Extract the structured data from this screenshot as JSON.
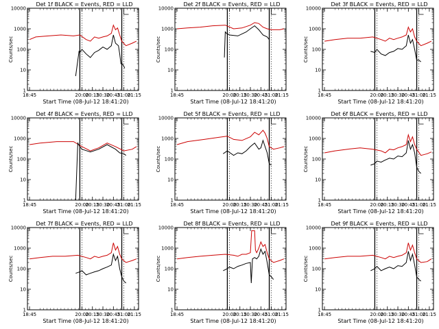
{
  "chart_data": [
    {
      "type": "line",
      "title": "Det 1f BLACK = Events, RED = LLD",
      "xlabel": "Start Time (08-Jul-12 18:41:20)",
      "ylabel": "Counts/sec",
      "xlim": [
        18.7,
        21.35
      ],
      "ylim": [
        1,
        10000
      ],
      "yscale": "log",
      "xticks": [
        "18:45",
        "20:00",
        "20:15",
        "20:30",
        "20:45",
        "21:00",
        "21:15"
      ],
      "yticks": [
        "1",
        "10",
        "100",
        "1000",
        "10000"
      ],
      "markers": [
        19.95,
        20.95
      ],
      "series": [
        {
          "name": "Events",
          "color": "#000000",
          "x": [
            19.85,
            19.93,
            19.95,
            20.0,
            20.1,
            20.2,
            20.3,
            20.4,
            20.5,
            20.6,
            20.7,
            20.75,
            20.8,
            20.87,
            20.9,
            20.93,
            20.96,
            21.0,
            21.02
          ],
          "y": [
            5,
            80,
            70,
            100,
            60,
            40,
            70,
            90,
            130,
            100,
            150,
            500,
            200,
            150,
            60,
            20,
            20,
            15,
            12
          ]
        },
        {
          "name": "LLD",
          "color": "#cc0000",
          "x": [
            18.75,
            18.9,
            19.2,
            19.5,
            19.8,
            19.95,
            20.1,
            20.2,
            20.3,
            20.4,
            20.5,
            20.6,
            20.7,
            20.75,
            20.8,
            20.85,
            20.9,
            20.95,
            21.05,
            21.2,
            21.3
          ],
          "y": [
            300,
            400,
            450,
            500,
            450,
            500,
            300,
            250,
            400,
            350,
            400,
            450,
            600,
            1500,
            900,
            1100,
            500,
            250,
            150,
            200,
            250
          ]
        }
      ]
    },
    {
      "type": "line",
      "title": "Det 2f BLACK = Events, RED = LLD",
      "xlabel": "Start Time (08-Jul-12 18:41:20)",
      "ylabel": "Counts/sec",
      "xlim": [
        18.7,
        21.35
      ],
      "ylim": [
        1,
        10000
      ],
      "yscale": "log",
      "xticks": [
        "18:45",
        "20:00",
        "20:15",
        "20:30",
        "20:45",
        "21:00",
        "21:15"
      ],
      "yticks": [
        "1",
        "10",
        "100",
        "1000",
        "10000"
      ],
      "markers": [
        19.95,
        20.95
      ],
      "series": [
        {
          "name": "Events",
          "color": "#000000",
          "x": [
            19.88,
            19.9,
            19.93,
            20.0,
            20.2,
            20.4,
            20.5,
            20.6,
            20.7,
            20.8,
            20.9,
            20.95
          ],
          "y": [
            40,
            700,
            600,
            500,
            450,
            700,
            1000,
            1400,
            900,
            500,
            400,
            300
          ]
        },
        {
          "name": "LLD",
          "color": "#cc0000",
          "x": [
            18.75,
            19.0,
            19.3,
            19.6,
            19.9,
            20.1,
            20.3,
            20.5,
            20.6,
            20.7,
            20.8,
            20.9,
            21.0,
            21.2,
            21.3
          ],
          "y": [
            1000,
            1100,
            1200,
            1400,
            1500,
            1000,
            1100,
            1500,
            2000,
            1800,
            1200,
            1000,
            900,
            900,
            1000
          ]
        }
      ]
    },
    {
      "type": "line",
      "title": "Det 3f BLACK = Events, RED = LLD",
      "xlabel": "Start Time (08-Jul-12 18:41:20)",
      "ylabel": "Counts/sec",
      "xlim": [
        18.7,
        21.35
      ],
      "ylim": [
        1,
        10000
      ],
      "yscale": "log",
      "xticks": [
        "18:45",
        "20:00",
        "20:15",
        "20:30",
        "20:45",
        "21:00",
        "21:15"
      ],
      "yticks": [
        "1",
        "10",
        "100",
        "1000",
        "10000"
      ],
      "markers": [
        19.95,
        20.95
      ],
      "series": [
        {
          "name": "Events",
          "color": "#000000",
          "x": [
            19.85,
            19.95,
            20.0,
            20.1,
            20.2,
            20.3,
            20.4,
            20.5,
            20.6,
            20.7,
            20.75,
            20.8,
            20.85,
            20.9,
            20.95,
            21.0,
            21.05
          ],
          "y": [
            80,
            70,
            100,
            60,
            50,
            70,
            80,
            110,
            100,
            150,
            500,
            200,
            300,
            100,
            30,
            30,
            25
          ]
        },
        {
          "name": "LLD",
          "color": "#cc0000",
          "x": [
            18.75,
            19.0,
            19.3,
            19.6,
            19.9,
            20.1,
            20.2,
            20.3,
            20.4,
            20.5,
            20.6,
            20.7,
            20.75,
            20.8,
            20.85,
            20.9,
            20.95,
            21.05,
            21.2,
            21.3
          ],
          "y": [
            250,
            300,
            350,
            350,
            400,
            300,
            250,
            350,
            300,
            350,
            400,
            500,
            1200,
            700,
            1000,
            400,
            250,
            150,
            200,
            250
          ]
        }
      ]
    },
    {
      "type": "line",
      "title": "Det 4f BLACK = Events, RED = LLD",
      "xlabel": "Start Time (08-Jul-12 18:41:20)",
      "ylabel": "Counts/sec",
      "xlim": [
        18.7,
        21.35
      ],
      "ylim": [
        1,
        10000
      ],
      "yscale": "log",
      "xticks": [
        "18:45",
        "20:00",
        "20:15",
        "20:30",
        "20:45",
        "21:00",
        "21:15"
      ],
      "yticks": [
        "1",
        "10",
        "100",
        "1000",
        "10000"
      ],
      "markers": [
        19.95,
        20.95
      ],
      "series": [
        {
          "name": "Events",
          "color": "#000000",
          "x": [
            19.85,
            19.9,
            19.95,
            20.0,
            20.2,
            20.4,
            20.6,
            20.8,
            20.9,
            21.0,
            21.05
          ],
          "y": [
            1,
            600,
            400,
            300,
            220,
            300,
            500,
            300,
            200,
            180,
            150
          ]
        },
        {
          "name": "LLD",
          "color": "#cc0000",
          "x": [
            18.75,
            19.0,
            19.4,
            19.8,
            20.0,
            20.2,
            20.4,
            20.6,
            20.8,
            21.0,
            21.2,
            21.3
          ],
          "y": [
            500,
            600,
            700,
            700,
            400,
            250,
            350,
            600,
            400,
            250,
            300,
            400
          ]
        }
      ]
    },
    {
      "type": "line",
      "title": "Det 5f BLACK = Events, RED = LLD",
      "xlabel": "Start Time (08-Jul-12 18:41:20)",
      "ylabel": "Counts/sec",
      "xlim": [
        18.7,
        21.35
      ],
      "ylim": [
        1,
        10000
      ],
      "yscale": "log",
      "xticks": [
        "18:45",
        "20:00",
        "20:15",
        "20:30",
        "20:45",
        "21:00",
        "21:15"
      ],
      "yticks": [
        "1",
        "10",
        "100",
        "1000",
        "10000"
      ],
      "markers": [
        19.95,
        20.95
      ],
      "series": [
        {
          "name": "Events",
          "color": "#000000",
          "x": [
            19.85,
            19.95,
            20.1,
            20.2,
            20.3,
            20.4,
            20.5,
            20.6,
            20.7,
            20.75,
            20.8,
            20.85,
            20.9,
            20.95,
            21.0
          ],
          "y": [
            180,
            250,
            150,
            200,
            180,
            250,
            400,
            600,
            300,
            350,
            800,
            400,
            200,
            60,
            50
          ]
        },
        {
          "name": "LLD",
          "color": "#cc0000",
          "x": [
            18.75,
            19.0,
            19.4,
            19.7,
            19.95,
            20.1,
            20.3,
            20.5,
            20.6,
            20.7,
            20.8,
            20.85,
            20.9,
            20.95,
            21.05,
            21.2,
            21.3
          ],
          "y": [
            500,
            700,
            900,
            1100,
            1300,
            900,
            800,
            1200,
            2000,
            1500,
            2500,
            1800,
            1000,
            400,
            300,
            350,
            400
          ]
        }
      ]
    },
    {
      "type": "line",
      "title": "Det 6f BLACK = Events, RED = LLD",
      "xlabel": "Start Time (08-Jul-12 18:41:20)",
      "ylabel": "Counts/sec",
      "xlim": [
        18.7,
        21.35
      ],
      "ylim": [
        1,
        10000
      ],
      "yscale": "log",
      "xticks": [
        "18:45",
        "20:00",
        "20:15",
        "20:30",
        "20:45",
        "21:00",
        "21:15"
      ],
      "yticks": [
        "1",
        "10",
        "100",
        "1000",
        "10000"
      ],
      "markers": [
        19.95,
        20.95
      ],
      "series": [
        {
          "name": "Events",
          "color": "#000000",
          "x": [
            19.85,
            19.95,
            20.0,
            20.1,
            20.2,
            20.3,
            20.4,
            20.5,
            20.6,
            20.7,
            20.75,
            20.8,
            20.85,
            20.9,
            20.95,
            21.0,
            21.05
          ],
          "y": [
            50,
            60,
            80,
            70,
            90,
            110,
            100,
            140,
            130,
            200,
            800,
            300,
            500,
            200,
            40,
            25,
            20
          ]
        },
        {
          "name": "LLD",
          "color": "#cc0000",
          "x": [
            18.75,
            19.0,
            19.3,
            19.6,
            19.9,
            20.1,
            20.2,
            20.3,
            20.4,
            20.5,
            20.6,
            20.7,
            20.75,
            20.8,
            20.85,
            20.9,
            20.95,
            21.05,
            21.2,
            21.3
          ],
          "y": [
            200,
            250,
            300,
            350,
            300,
            250,
            200,
            300,
            280,
            350,
            400,
            500,
            1500,
            700,
            1200,
            500,
            300,
            150,
            180,
            220
          ]
        }
      ]
    },
    {
      "type": "line",
      "title": "Det 7f BLACK = Events, RED = LLD",
      "xlabel": "Start Time (08-Jul-12 18:41:20)",
      "ylabel": "Counts/sec",
      "xlim": [
        18.7,
        21.35
      ],
      "ylim": [
        1,
        10000
      ],
      "yscale": "log",
      "xticks": [
        "18:45",
        "20:00",
        "20:15",
        "20:30",
        "20:45",
        "21:00",
        "21:15"
      ],
      "yticks": [
        "1",
        "10",
        "100",
        "1000",
        "10000"
      ],
      "markers": [
        19.95,
        20.95
      ],
      "series": [
        {
          "name": "Events",
          "color": "#000000",
          "x": [
            19.85,
            19.95,
            20.0,
            20.1,
            20.2,
            20.3,
            20.4,
            20.5,
            20.6,
            20.7,
            20.75,
            20.8,
            20.85,
            20.9,
            20.95,
            21.0,
            21.05
          ],
          "y": [
            60,
            70,
            80,
            50,
            60,
            70,
            80,
            100,
            120,
            150,
            500,
            250,
            400,
            100,
            40,
            25,
            20
          ]
        },
        {
          "name": "LLD",
          "color": "#cc0000",
          "x": [
            18.75,
            19.0,
            19.3,
            19.6,
            19.9,
            20.1,
            20.2,
            20.3,
            20.4,
            20.5,
            20.6,
            20.7,
            20.75,
            20.8,
            20.85,
            20.9,
            20.95,
            21.05,
            21.2,
            21.3
          ],
          "y": [
            300,
            350,
            400,
            400,
            450,
            350,
            300,
            400,
            350,
            400,
            450,
            600,
            1800,
            800,
            1200,
            500,
            300,
            200,
            250,
            300
          ]
        }
      ]
    },
    {
      "type": "line",
      "title": "Det 8f BLACK = Events, RED = LLD",
      "xlabel": "Start Time (08-Jul-12 18:41:20)",
      "ylabel": "Counts/sec",
      "xlim": [
        18.7,
        21.35
      ],
      "ylim": [
        1,
        10000
      ],
      "yscale": "log",
      "xticks": [
        "18:45",
        "20:00",
        "20:15",
        "20:30",
        "20:45",
        "21:00",
        "21:15"
      ],
      "yticks": [
        "1",
        "10",
        "100",
        "1000",
        "10000"
      ],
      "markers": [
        19.95,
        20.95
      ],
      "series": [
        {
          "name": "Events",
          "color": "#000000",
          "x": [
            19.85,
            19.95,
            20.0,
            20.1,
            20.2,
            20.3,
            20.4,
            20.5,
            20.52,
            20.55,
            20.6,
            20.65,
            20.7,
            20.75,
            20.8,
            20.85,
            20.9,
            20.95,
            21.0,
            21.05
          ],
          "y": [
            80,
            100,
            120,
            100,
            130,
            150,
            180,
            200,
            20,
            300,
            350,
            300,
            400,
            900,
            500,
            700,
            200,
            50,
            40,
            30
          ]
        },
        {
          "name": "LLD",
          "color": "#cc0000",
          "x": [
            18.75,
            19.0,
            19.3,
            19.6,
            19.9,
            20.1,
            20.2,
            20.3,
            20.4,
            20.5,
            20.53,
            20.6,
            20.62,
            20.65,
            20.7,
            20.75,
            20.8,
            20.85,
            20.9,
            20.95,
            21.05,
            21.2,
            21.3
          ],
          "y": [
            300,
            350,
            400,
            450,
            500,
            450,
            400,
            500,
            500,
            600,
            7000,
            7000,
            800,
            600,
            1000,
            2000,
            1200,
            1500,
            600,
            300,
            200,
            250,
            300
          ]
        }
      ]
    },
    {
      "type": "line",
      "title": "Det 9f BLACK = Events, RED = LLD",
      "xlabel": "Start Time (08-Jul-12 18:41:20)",
      "ylabel": "Counts/sec",
      "xlim": [
        18.7,
        21.35
      ],
      "ylim": [
        1,
        10000
      ],
      "yscale": "log",
      "xticks": [
        "18:45",
        "20:00",
        "20:15",
        "20:30",
        "20:45",
        "21:00",
        "21:15"
      ],
      "yticks": [
        "1",
        "10",
        "100",
        "1000",
        "10000"
      ],
      "markers": [
        19.95,
        20.95
      ],
      "series": [
        {
          "name": "Events",
          "color": "#000000",
          "x": [
            19.85,
            19.95,
            20.0,
            20.1,
            20.2,
            20.3,
            20.4,
            20.5,
            20.6,
            20.7,
            20.75,
            20.8,
            20.85,
            20.9,
            20.95,
            21.0,
            21.05
          ],
          "y": [
            80,
            100,
            130,
            80,
            100,
            120,
            100,
            140,
            130,
            200,
            700,
            250,
            500,
            150,
            40,
            30,
            25
          ]
        },
        {
          "name": "LLD",
          "color": "#cc0000",
          "x": [
            18.75,
            19.0,
            19.3,
            19.6,
            19.9,
            20.1,
            20.2,
            20.3,
            20.4,
            20.5,
            20.6,
            20.7,
            20.75,
            20.8,
            20.85,
            20.9,
            20.95,
            21.05,
            21.2,
            21.3
          ],
          "y": [
            300,
            350,
            400,
            400,
            450,
            350,
            300,
            400,
            350,
            400,
            450,
            600,
            1800,
            800,
            1400,
            600,
            300,
            200,
            220,
            300
          ]
        }
      ]
    }
  ]
}
